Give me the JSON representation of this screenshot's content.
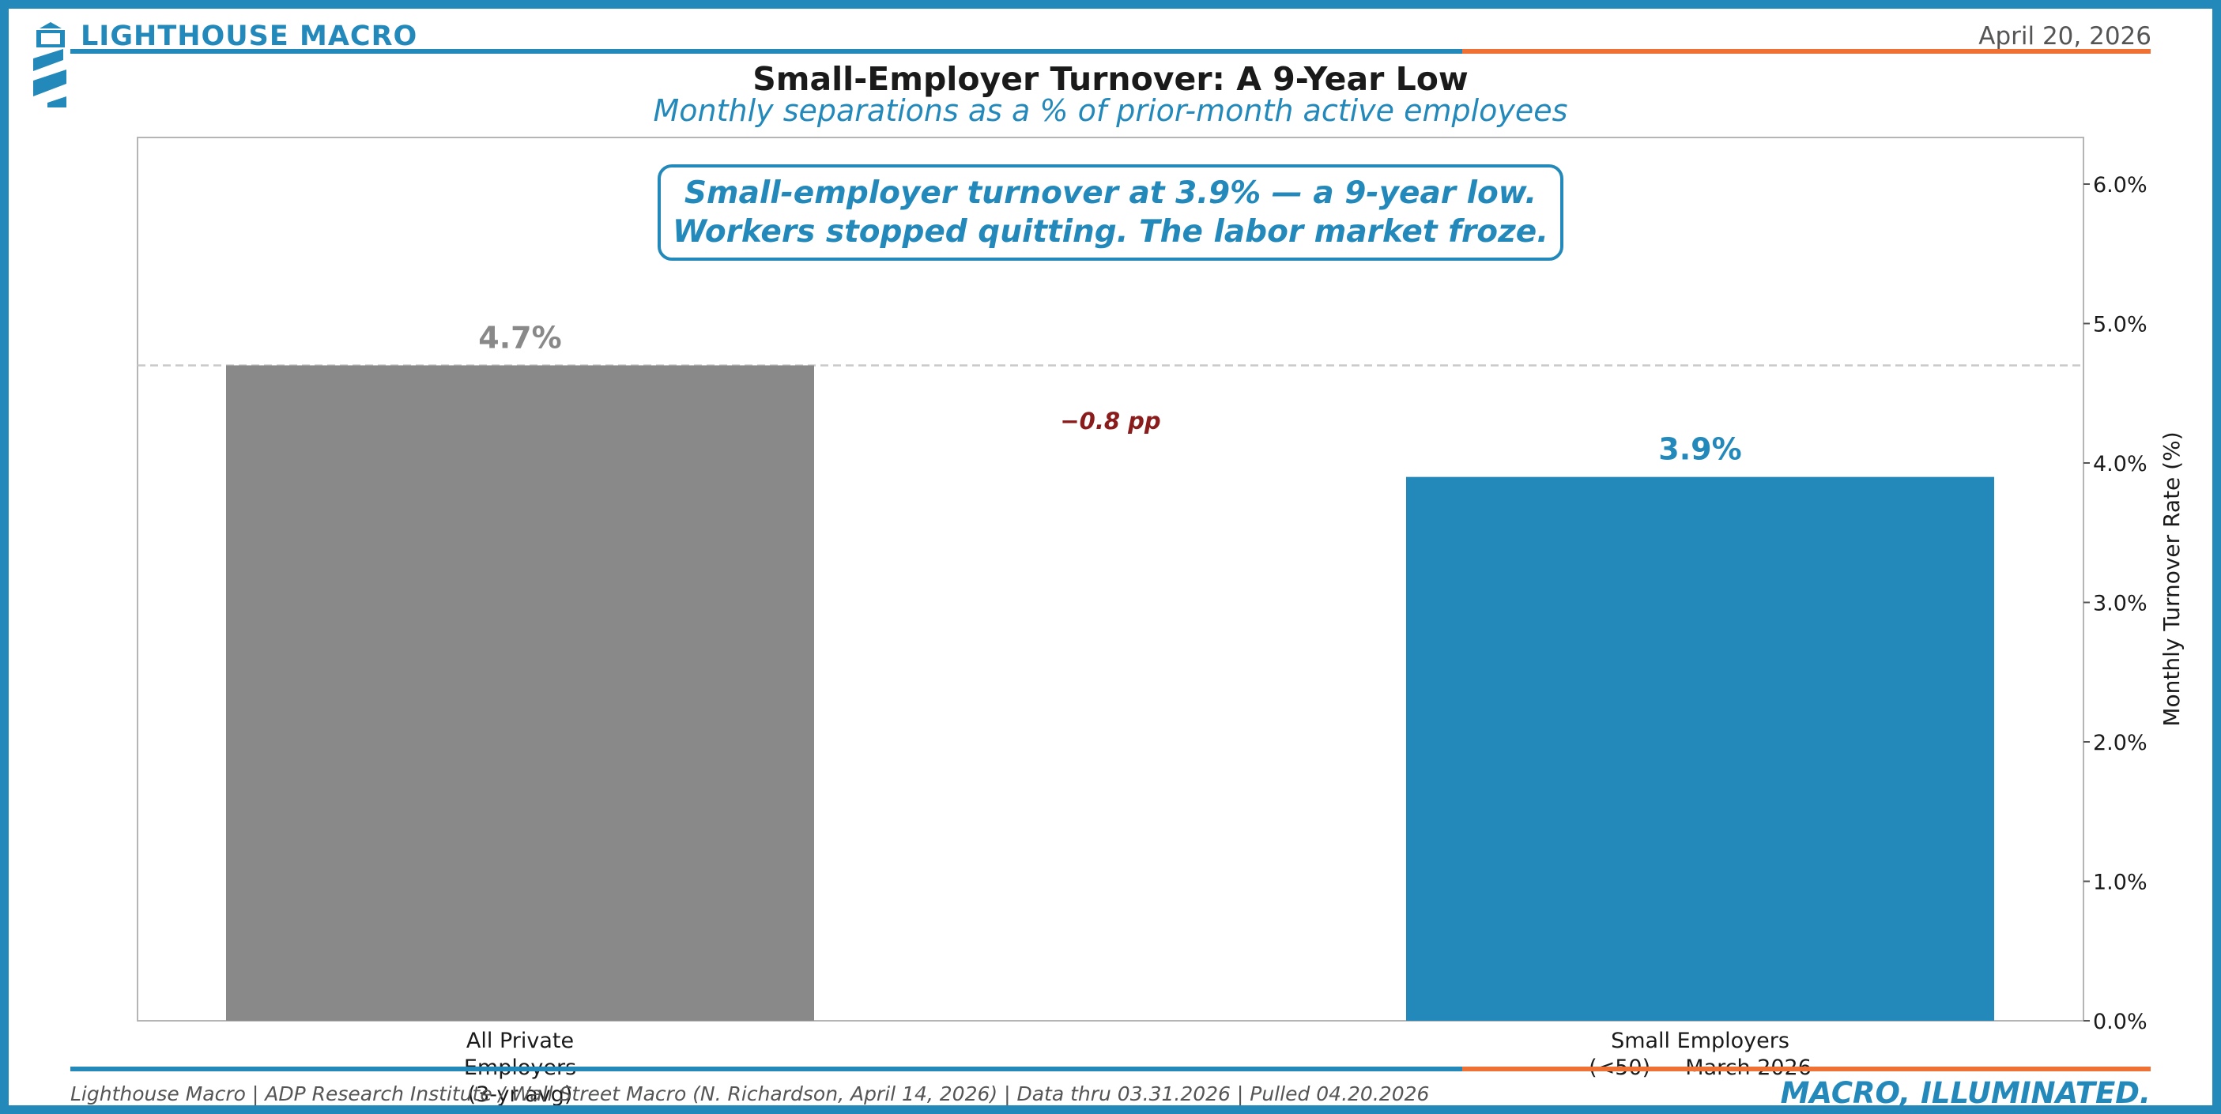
{
  "header": {
    "brand": "LIGHTHOUSE MACRO",
    "date": "April 20, 2026",
    "logo_icon": "lighthouse-icon"
  },
  "colors": {
    "blue": "#2389bb",
    "orange": "#f07134",
    "gray_bar": "#898989",
    "delta": "#8b1c1c"
  },
  "chart_data": {
    "type": "bar",
    "title": "Small-Employer Turnover: A 9-Year Low",
    "subtitle": "Monthly separations as a % of prior-month active employees",
    "callout": [
      "Small-employer turnover at 3.9% — a 9-year low.",
      "Workers stopped quitting. The labor market froze."
    ],
    "categories": [
      [
        "All Private",
        "Employers",
        "(3-yr avg)"
      ],
      [
        "Small Employers",
        "(<50) — March 2026"
      ]
    ],
    "values": [
      4.7,
      3.9
    ],
    "value_labels": [
      "4.7%",
      "3.9%"
    ],
    "bar_colors": [
      "#898989",
      "#2389bb"
    ],
    "reference_line": 4.7,
    "delta_label": "−0.8 pp",
    "ylabel": "Monthly Turnover Rate (%)",
    "ylim": [
      0,
      6.35
    ],
    "yticks": [
      0,
      1,
      2,
      3,
      4,
      5,
      6
    ],
    "ytick_labels": [
      "0.0%",
      "1.0%",
      "2.0%",
      "3.0%",
      "4.0%",
      "5.0%",
      "6.0%"
    ],
    "y_axis_side": "right",
    "grid": false
  },
  "footer": {
    "source": "Lighthouse Macro | ADP Research Institute / Wall Street Macro (N. Richardson, April 14, 2026) | Data thru 03.31.2026 | Pulled 04.20.2026",
    "tagline": "MACRO, ILLUMINATED."
  }
}
